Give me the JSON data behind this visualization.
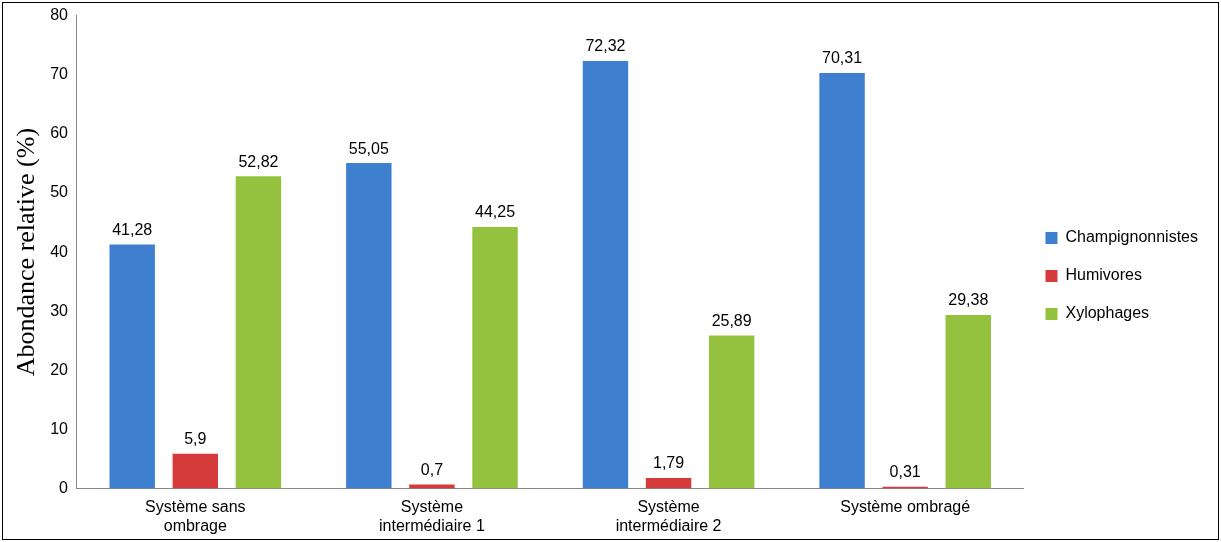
{
  "chart_data": {
    "type": "bar",
    "ylabel": "Abondance relative (%)",
    "categories": [
      "Système sans ombrage",
      "Système intermédiaire 1",
      "Système intermédiaire 2",
      "Système ombragé"
    ],
    "series": [
      {
        "name": "Champignonnistes",
        "color": "#3f7fd0",
        "values": [
          41.28,
          55.05,
          72.32,
          70.31
        ],
        "value_labels": [
          "41,28",
          "55,05",
          "72,32",
          "70,31"
        ]
      },
      {
        "name": "Humivores",
        "color": "#d63b3b",
        "values": [
          5.9,
          0.7,
          1.79,
          0.31
        ],
        "value_labels": [
          "5,9",
          "0,7",
          "1,79",
          "0,31"
        ]
      },
      {
        "name": "Xylophages",
        "color": "#94c23f",
        "values": [
          52.82,
          44.25,
          25.89,
          29.38
        ],
        "value_labels": [
          "52,82",
          "44,25",
          "25,89",
          "29,38"
        ]
      }
    ],
    "ylim": [
      0,
      80
    ],
    "yticks": [
      0,
      10,
      20,
      30,
      40,
      50,
      60,
      70,
      80
    ],
    "grid": false,
    "legend": "right"
  }
}
